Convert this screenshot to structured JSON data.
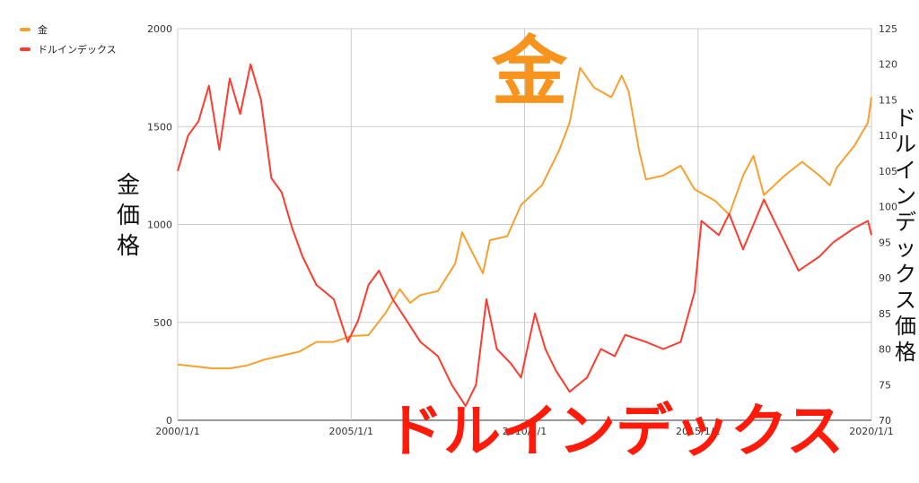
{
  "chart_data": {
    "type": "line",
    "legend_position": "top-left",
    "grid": true,
    "xlabel": "",
    "x_ticks": [
      "2000/1/1",
      "2005/1/1",
      "2010/1/1",
      "2015/1/1",
      "2020/1/1"
    ],
    "x_range": [
      2000.0,
      2020.0
    ],
    "left_axis": {
      "label": "金価格",
      "range": [
        0,
        2000
      ],
      "ticks": [
        0,
        500,
        1000,
        1500,
        2000
      ]
    },
    "right_axis": {
      "label": "ドルインデックス価格",
      "range": [
        70,
        125
      ],
      "ticks": [
        70,
        75,
        80,
        85,
        90,
        95,
        100,
        105,
        110,
        115,
        120,
        125
      ]
    },
    "series": [
      {
        "name": "金",
        "axis": "left",
        "color": "#f7a030",
        "points": [
          [
            2000.0,
            285
          ],
          [
            2000.5,
            275
          ],
          [
            2001.0,
            265
          ],
          [
            2001.5,
            265
          ],
          [
            2002.0,
            280
          ],
          [
            2002.5,
            310
          ],
          [
            2003.0,
            330
          ],
          [
            2003.5,
            350
          ],
          [
            2004.0,
            400
          ],
          [
            2004.5,
            400
          ],
          [
            2005.0,
            430
          ],
          [
            2005.5,
            435
          ],
          [
            2006.0,
            550
          ],
          [
            2006.4,
            670
          ],
          [
            2006.7,
            600
          ],
          [
            2007.0,
            640
          ],
          [
            2007.5,
            660
          ],
          [
            2008.0,
            800
          ],
          [
            2008.2,
            960
          ],
          [
            2008.8,
            750
          ],
          [
            2009.0,
            920
          ],
          [
            2009.5,
            940
          ],
          [
            2009.9,
            1100
          ],
          [
            2010.5,
            1200
          ],
          [
            2011.0,
            1380
          ],
          [
            2011.3,
            1520
          ],
          [
            2011.6,
            1800
          ],
          [
            2012.0,
            1700
          ],
          [
            2012.5,
            1650
          ],
          [
            2012.8,
            1760
          ],
          [
            2013.0,
            1680
          ],
          [
            2013.3,
            1380
          ],
          [
            2013.5,
            1230
          ],
          [
            2014.0,
            1250
          ],
          [
            2014.5,
            1300
          ],
          [
            2014.9,
            1180
          ],
          [
            2015.5,
            1120
          ],
          [
            2015.9,
            1050
          ],
          [
            2016.3,
            1250
          ],
          [
            2016.6,
            1350
          ],
          [
            2016.9,
            1150
          ],
          [
            2017.5,
            1250
          ],
          [
            2018.0,
            1320
          ],
          [
            2018.5,
            1250
          ],
          [
            2018.8,
            1200
          ],
          [
            2019.0,
            1290
          ],
          [
            2019.5,
            1400
          ],
          [
            2019.9,
            1520
          ],
          [
            2020.0,
            1650
          ]
        ]
      },
      {
        "name": "ドルインデックス",
        "axis": "right",
        "color": "#ff3b30",
        "points": [
          [
            2000.0,
            105
          ],
          [
            2000.3,
            110
          ],
          [
            2000.6,
            112
          ],
          [
            2000.9,
            117
          ],
          [
            2001.2,
            108
          ],
          [
            2001.5,
            118
          ],
          [
            2001.8,
            113
          ],
          [
            2002.1,
            120
          ],
          [
            2002.4,
            115
          ],
          [
            2002.7,
            104
          ],
          [
            2003.0,
            102
          ],
          [
            2003.3,
            97
          ],
          [
            2003.6,
            93
          ],
          [
            2004.0,
            89
          ],
          [
            2004.5,
            87
          ],
          [
            2004.9,
            81
          ],
          [
            2005.2,
            84
          ],
          [
            2005.5,
            89
          ],
          [
            2005.8,
            91
          ],
          [
            2006.2,
            87
          ],
          [
            2006.6,
            84
          ],
          [
            2007.0,
            81
          ],
          [
            2007.5,
            79
          ],
          [
            2007.9,
            75
          ],
          [
            2008.3,
            72
          ],
          [
            2008.6,
            75
          ],
          [
            2008.9,
            87
          ],
          [
            2009.2,
            80
          ],
          [
            2009.6,
            78
          ],
          [
            2009.9,
            76
          ],
          [
            2010.3,
            85
          ],
          [
            2010.6,
            80
          ],
          [
            2010.9,
            77
          ],
          [
            2011.3,
            74
          ],
          [
            2011.8,
            76
          ],
          [
            2012.2,
            80
          ],
          [
            2012.6,
            79
          ],
          [
            2012.9,
            82
          ],
          [
            2013.5,
            81
          ],
          [
            2014.0,
            80
          ],
          [
            2014.5,
            81
          ],
          [
            2014.9,
            88
          ],
          [
            2015.1,
            98
          ],
          [
            2015.6,
            96
          ],
          [
            2015.9,
            99
          ],
          [
            2016.3,
            94
          ],
          [
            2016.9,
            101
          ],
          [
            2017.3,
            97
          ],
          [
            2017.9,
            91
          ],
          [
            2018.5,
            93
          ],
          [
            2018.9,
            95
          ],
          [
            2019.5,
            97
          ],
          [
            2019.9,
            98
          ],
          [
            2020.0,
            96
          ]
        ]
      }
    ]
  },
  "overlay": {
    "gold_title": "金",
    "dollar_title": "ドルインデックス"
  }
}
